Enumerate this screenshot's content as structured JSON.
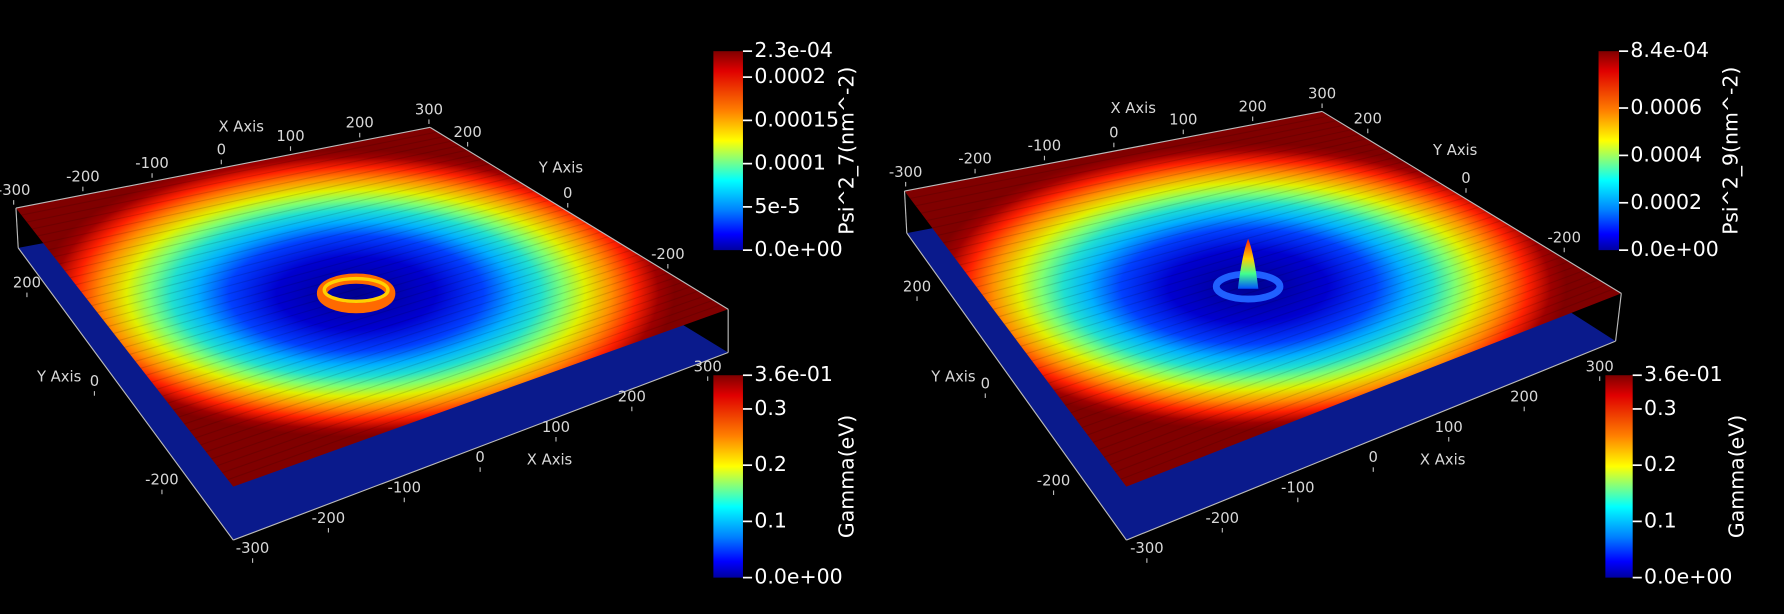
{
  "panels": [
    {
      "axes": [
        {
          "title": "X Axis",
          "range": [
            -300,
            300
          ],
          "ticks": [
            -300,
            -200,
            -100,
            0,
            100,
            200,
            300
          ]
        },
        {
          "title": "Y Axis",
          "range": [
            -300,
            300
          ],
          "ticks": [
            200,
            0,
            -200
          ]
        },
        {
          "title": "Y Axis",
          "range": [
            -300,
            300
          ],
          "ticks": [
            200,
            0,
            -200
          ]
        },
        {
          "title": "X Axis",
          "range": [
            -300,
            300
          ],
          "ticks": [
            -300,
            -200,
            -100,
            0,
            100,
            200,
            300
          ]
        }
      ],
      "colorbars": [
        {
          "title": "Psi^2_7(nm^-2)",
          "range": [
            0,
            0.00023
          ],
          "ticks": [
            {
              "value": 0.00023,
              "label": "2.3e-04"
            },
            0.0002,
            0.00015,
            0.0001,
            {
              "value": 5e-05,
              "label": "5e-5"
            },
            {
              "value": 0,
              "label": "0.0e+00"
            }
          ]
        },
        {
          "title": "Gamma(eV)",
          "range": [
            0,
            0.36
          ],
          "ticks": [
            {
              "value": 0.36,
              "label": "3.6e-01"
            },
            0.3,
            0.2,
            0.1,
            {
              "value": 0,
              "label": "0.0e+00"
            }
          ]
        }
      ]
    },
    {
      "axes": [
        {
          "title": "X Axis",
          "range": [
            -300,
            300
          ],
          "ticks": [
            -300,
            -200,
            -100,
            0,
            100,
            200,
            300
          ]
        },
        {
          "title": "Y Axis",
          "range": [
            -300,
            300
          ],
          "ticks": [
            200,
            0,
            -200
          ]
        },
        {
          "title": "Y Axis",
          "range": [
            -300,
            300
          ],
          "ticks": [
            200,
            0,
            -200
          ]
        },
        {
          "title": "X Axis",
          "range": [
            -300,
            300
          ],
          "ticks": [
            -300,
            -200,
            -100,
            0,
            100,
            200,
            300
          ]
        }
      ],
      "colorbars": [
        {
          "title": "Psi^2_9(nm^-2)",
          "range": [
            0,
            0.00084
          ],
          "ticks": [
            {
              "value": 0.00084,
              "label": "8.4e-04"
            },
            0.0006,
            0.0004,
            0.0002,
            {
              "value": 0,
              "label": "0.0e+00"
            }
          ]
        },
        {
          "title": "Gamma(eV)",
          "range": [
            0,
            0.36
          ],
          "ticks": [
            {
              "value": 0.36,
              "label": "3.6e-01"
            },
            0.3,
            0.2,
            0.1,
            {
              "value": 0,
              "label": "0.0e+00"
            }
          ]
        }
      ]
    }
  ]
}
